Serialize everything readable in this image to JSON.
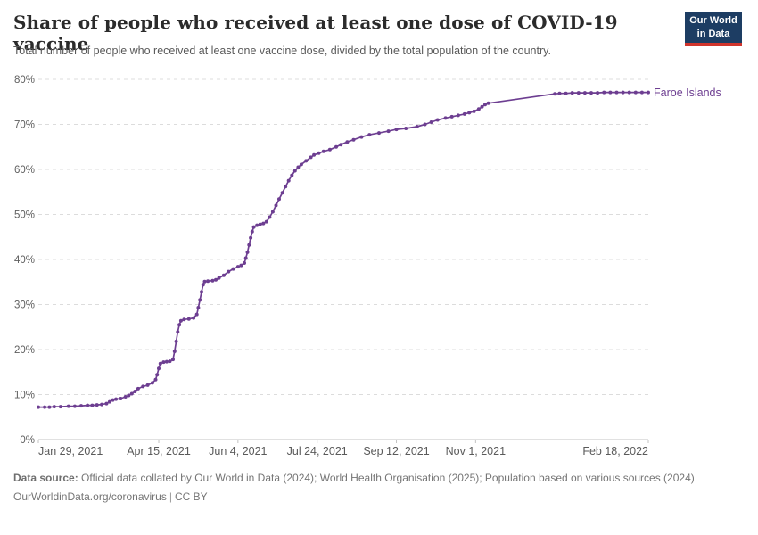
{
  "header": {
    "title": "Share of people who received at least one dose of COVID-19 vaccine",
    "subtitle": "Total number of people who received at least one vaccine dose, divided by the total population of the country.",
    "logo": {
      "line1": "Our World",
      "line2": "in Data"
    }
  },
  "colors": {
    "series_purple": "#6d3e91",
    "grid": "#dcdcdc",
    "axis": "#c3c3c3",
    "axis_text": "#5a5a5a",
    "title_text": "#2b2b2b",
    "logo_navy": "#1d3d63",
    "logo_red": "#d0342c"
  },
  "chart_data": {
    "type": "line",
    "title": "Share of people who received at least one dose of COVID-19 vaccine",
    "xlabel": "",
    "ylabel": "",
    "xlim": [
      "2021-01-29",
      "2022-02-18"
    ],
    "ylim": [
      0,
      80
    ],
    "grid": "horizontal-dashed",
    "legend_position": "end-of-line",
    "y_ticks": [
      {
        "value": 0,
        "label": "0%"
      },
      {
        "value": 10,
        "label": "10%"
      },
      {
        "value": 20,
        "label": "20%"
      },
      {
        "value": 30,
        "label": "30%"
      },
      {
        "value": 40,
        "label": "40%"
      },
      {
        "value": 50,
        "label": "50%"
      },
      {
        "value": 60,
        "label": "60%"
      },
      {
        "value": 70,
        "label": "70%"
      },
      {
        "value": 80,
        "label": "80%"
      }
    ],
    "x_ticks": [
      {
        "date": "2021-01-29",
        "label": "Jan 29, 2021"
      },
      {
        "date": "2021-04-15",
        "label": "Apr 15, 2021"
      },
      {
        "date": "2021-06-04",
        "label": "Jun 4, 2021"
      },
      {
        "date": "2021-07-24",
        "label": "Jul 24, 2021"
      },
      {
        "date": "2021-09-12",
        "label": "Sep 12, 2021"
      },
      {
        "date": "2021-11-01",
        "label": "Nov 1, 2021"
      },
      {
        "date": "2022-02-18",
        "label": "Feb 18, 2022"
      }
    ],
    "series": [
      {
        "name": "Faroe Islands",
        "color": "#6d3e91",
        "points": [
          [
            "2021-01-29",
            7.2
          ],
          [
            "2021-02-02",
            7.2
          ],
          [
            "2021-02-05",
            7.2
          ],
          [
            "2021-02-08",
            7.3
          ],
          [
            "2021-02-12",
            7.3
          ],
          [
            "2021-02-17",
            7.4
          ],
          [
            "2021-02-21",
            7.4
          ],
          [
            "2021-02-25",
            7.5
          ],
          [
            "2021-03-01",
            7.6
          ],
          [
            "2021-03-04",
            7.6
          ],
          [
            "2021-03-07",
            7.7
          ],
          [
            "2021-03-10",
            7.8
          ],
          [
            "2021-03-13",
            8.0
          ],
          [
            "2021-03-15",
            8.4
          ],
          [
            "2021-03-17",
            8.8
          ],
          [
            "2021-03-19",
            9.0
          ],
          [
            "2021-03-22",
            9.1
          ],
          [
            "2021-03-25",
            9.5
          ],
          [
            "2021-03-27",
            9.8
          ],
          [
            "2021-03-29",
            10.2
          ],
          [
            "2021-03-31",
            10.7
          ],
          [
            "2021-04-02",
            11.3
          ],
          [
            "2021-04-05",
            11.8
          ],
          [
            "2021-04-08",
            12.1
          ],
          [
            "2021-04-11",
            12.6
          ],
          [
            "2021-04-13",
            13.3
          ],
          [
            "2021-04-14",
            14.4
          ],
          [
            "2021-04-15",
            15.8
          ],
          [
            "2021-04-16",
            16.9
          ],
          [
            "2021-04-18",
            17.2
          ],
          [
            "2021-04-20",
            17.3
          ],
          [
            "2021-04-22",
            17.4
          ],
          [
            "2021-04-24",
            17.8
          ],
          [
            "2021-04-25",
            19.6
          ],
          [
            "2021-04-26",
            21.8
          ],
          [
            "2021-04-27",
            23.9
          ],
          [
            "2021-04-28",
            25.5
          ],
          [
            "2021-04-29",
            26.4
          ],
          [
            "2021-05-01",
            26.7
          ],
          [
            "2021-05-04",
            26.8
          ],
          [
            "2021-05-07",
            27.0
          ],
          [
            "2021-05-09",
            27.8
          ],
          [
            "2021-05-10",
            29.3
          ],
          [
            "2021-05-11",
            31.0
          ],
          [
            "2021-05-12",
            32.8
          ],
          [
            "2021-05-13",
            34.4
          ],
          [
            "2021-05-14",
            35.1
          ],
          [
            "2021-05-16",
            35.2
          ],
          [
            "2021-05-19",
            35.3
          ],
          [
            "2021-05-21",
            35.5
          ],
          [
            "2021-05-23",
            35.9
          ],
          [
            "2021-05-26",
            36.5
          ],
          [
            "2021-05-29",
            37.3
          ],
          [
            "2021-06-01",
            37.9
          ],
          [
            "2021-06-04",
            38.4
          ],
          [
            "2021-06-06",
            38.7
          ],
          [
            "2021-06-08",
            39.2
          ],
          [
            "2021-06-09",
            40.3
          ],
          [
            "2021-06-10",
            41.6
          ],
          [
            "2021-06-11",
            43.2
          ],
          [
            "2021-06-12",
            44.8
          ],
          [
            "2021-06-13",
            46.2
          ],
          [
            "2021-06-14",
            47.2
          ],
          [
            "2021-06-16",
            47.6
          ],
          [
            "2021-06-18",
            47.8
          ],
          [
            "2021-06-20",
            48.0
          ],
          [
            "2021-06-22",
            48.4
          ],
          [
            "2021-06-24",
            49.4
          ],
          [
            "2021-06-26",
            50.6
          ],
          [
            "2021-06-28",
            52.0
          ],
          [
            "2021-06-30",
            53.4
          ],
          [
            "2021-07-02",
            54.8
          ],
          [
            "2021-07-04",
            56.2
          ],
          [
            "2021-07-06",
            57.5
          ],
          [
            "2021-07-08",
            58.7
          ],
          [
            "2021-07-10",
            59.7
          ],
          [
            "2021-07-12",
            60.5
          ],
          [
            "2021-07-14",
            61.1
          ],
          [
            "2021-07-17",
            61.9
          ],
          [
            "2021-07-20",
            62.7
          ],
          [
            "2021-07-22",
            63.2
          ],
          [
            "2021-07-25",
            63.6
          ],
          [
            "2021-07-28",
            64.0
          ],
          [
            "2021-08-01",
            64.4
          ],
          [
            "2021-08-05",
            65.0
          ],
          [
            "2021-08-08",
            65.5
          ],
          [
            "2021-08-12",
            66.1
          ],
          [
            "2021-08-16",
            66.6
          ],
          [
            "2021-08-21",
            67.2
          ],
          [
            "2021-08-26",
            67.7
          ],
          [
            "2021-09-01",
            68.1
          ],
          [
            "2021-09-07",
            68.5
          ],
          [
            "2021-09-12",
            68.9
          ],
          [
            "2021-09-18",
            69.1
          ],
          [
            "2021-09-25",
            69.5
          ],
          [
            "2021-09-30",
            70.0
          ],
          [
            "2021-10-04",
            70.5
          ],
          [
            "2021-10-08",
            71.0
          ],
          [
            "2021-10-13",
            71.4
          ],
          [
            "2021-10-17",
            71.7
          ],
          [
            "2021-10-21",
            72.0
          ],
          [
            "2021-10-25",
            72.3
          ],
          [
            "2021-10-28",
            72.6
          ],
          [
            "2021-10-31",
            72.9
          ],
          [
            "2021-11-03",
            73.4
          ],
          [
            "2021-11-05",
            73.9
          ],
          [
            "2021-11-07",
            74.4
          ],
          [
            "2021-11-09",
            74.7
          ],
          [
            "2021-12-21",
            76.8
          ],
          [
            "2021-12-24",
            76.9
          ],
          [
            "2021-12-28",
            76.9
          ],
          [
            "2022-01-01",
            77.0
          ],
          [
            "2022-01-05",
            77.0
          ],
          [
            "2022-01-09",
            77.0
          ],
          [
            "2022-01-13",
            77.0
          ],
          [
            "2022-01-17",
            77.0
          ],
          [
            "2022-01-21",
            77.1
          ],
          [
            "2022-01-25",
            77.1
          ],
          [
            "2022-01-29",
            77.1
          ],
          [
            "2022-02-02",
            77.1
          ],
          [
            "2022-02-06",
            77.1
          ],
          [
            "2022-02-10",
            77.1
          ],
          [
            "2022-02-14",
            77.1
          ],
          [
            "2022-02-18",
            77.1
          ]
        ]
      }
    ]
  },
  "footer": {
    "source_label": "Data source:",
    "source_text": " Official data collated by Our World in Data (2024); World Health Organisation (2025); Population based on various sources (2024)",
    "link": "OurWorldinData.org/coronavirus",
    "separator": "|",
    "license": "CC BY"
  }
}
